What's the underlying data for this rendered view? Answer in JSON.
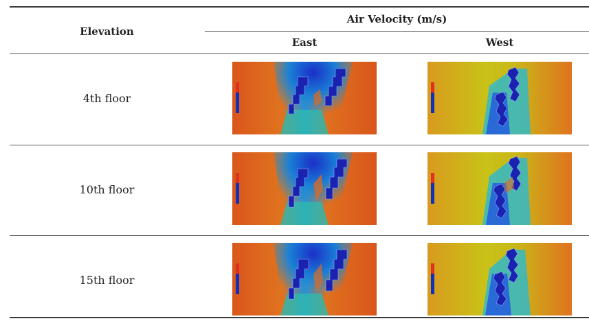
{
  "table": {
    "header": {
      "elevation": "Elevation",
      "group": "Air Velocity (m/s)",
      "east": "East",
      "west": "West"
    },
    "rows": [
      {
        "label": "4th floor"
      },
      {
        "label": "10th floor"
      },
      {
        "label": "15th floor"
      }
    ]
  },
  "colors": {
    "warm": "#e06a1f",
    "mid": "#c9c218",
    "cool": "#1a9ad4",
    "deep": "#1b1ea8"
  },
  "panel_types": [
    "east-simulation",
    "west-simulation"
  ]
}
